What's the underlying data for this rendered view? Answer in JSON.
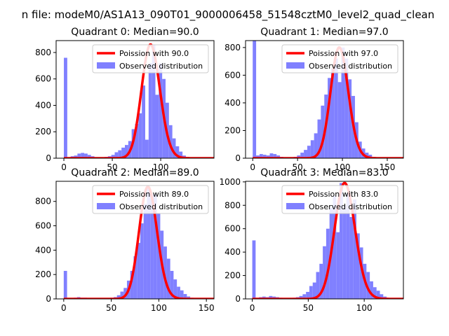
{
  "figure": {
    "suptitle": "n file: modeM0/AS1A13_090T01_9000006458_51548cztM0_level2_quad_clean"
  },
  "colors": {
    "poisson": "#ff0000",
    "observed": "#8080ff",
    "axis": "#000000",
    "background": "#ffffff"
  },
  "chart_data": [
    {
      "type": "bar",
      "title": "Quadrant 0: Median=90.0",
      "xlim": [
        -8,
        155
      ],
      "ylim": [
        0,
        890
      ],
      "xticks": [
        0,
        50,
        100
      ],
      "yticks": [
        0,
        200,
        400,
        600,
        800
      ],
      "legend": {
        "placement": "top-right",
        "entries": [
          "Poission with 90.0",
          "Observed distribution"
        ]
      },
      "observed": {
        "name": "Observed distribution",
        "bin_width": 3.5,
        "x": [
          0,
          3.5,
          7,
          10.5,
          14,
          17.5,
          21,
          24.5,
          28,
          31.5,
          35,
          38.5,
          42,
          45.5,
          49,
          52.5,
          56,
          59.5,
          63,
          66.5,
          70,
          73.5,
          77,
          80.5,
          84,
          87.5,
          91,
          94.5,
          98,
          101.5,
          105,
          108.5,
          112,
          115.5,
          119,
          122.5,
          126,
          129.5,
          133,
          136.5,
          140,
          143.5
        ],
        "values": [
          760,
          5,
          15,
          20,
          35,
          40,
          35,
          25,
          15,
          5,
          5,
          5,
          10,
          15,
          25,
          45,
          60,
          80,
          100,
          130,
          220,
          260,
          340,
          550,
          140,
          720,
          860,
          480,
          720,
          600,
          420,
          250,
          150,
          90,
          50,
          20,
          10,
          5,
          3,
          2,
          1,
          1
        ]
      },
      "poisson": {
        "name": "Poission with 90.0",
        "mean": 90.0
      }
    },
    {
      "type": "bar",
      "title": "Quadrant 1: Median=97.0",
      "xlim": [
        -8,
        168
      ],
      "ylim": [
        0,
        850
      ],
      "xticks": [
        0,
        50,
        100,
        150
      ],
      "yticks": [
        0,
        200,
        400,
        600,
        800
      ],
      "legend": {
        "placement": "top-right",
        "entries": [
          "Poission with 97.0",
          "Observed distribution"
        ]
      },
      "observed": {
        "name": "Observed distribution",
        "bin_width": 3.8,
        "x": [
          0,
          3.8,
          7.6,
          11.4,
          15.2,
          19,
          22.8,
          26.6,
          30.4,
          34.2,
          38,
          41.8,
          45.6,
          49.4,
          53.2,
          57,
          60.8,
          64.6,
          68.4,
          72.2,
          76,
          79.8,
          83.6,
          87.4,
          91.2,
          95,
          98.8,
          102.6,
          106.4,
          110.2,
          114,
          117.8,
          121.6,
          125.4,
          129.2,
          133,
          136.8,
          140.6,
          144.4,
          148.2,
          152,
          155.8,
          159.6
        ],
        "values": [
          850,
          20,
          30,
          25,
          20,
          35,
          30,
          20,
          10,
          5,
          5,
          5,
          10,
          20,
          40,
          60,
          90,
          130,
          180,
          280,
          380,
          460,
          580,
          650,
          720,
          550,
          800,
          720,
          570,
          450,
          260,
          120,
          70,
          40,
          25,
          10,
          5,
          3,
          2,
          1,
          1,
          1,
          1
        ]
      },
      "poisson": {
        "name": "Poission with 97.0",
        "mean": 97.0
      }
    },
    {
      "type": "bar",
      "title": "Quadrant 2: Median=89.0",
      "xlim": [
        -8,
        158
      ],
      "ylim": [
        0,
        965
      ],
      "xticks": [
        0,
        50,
        100,
        150
      ],
      "yticks": [
        0,
        200,
        400,
        600,
        800
      ],
      "legend": {
        "placement": "top-right",
        "entries": [
          "Poission with 89.0",
          "Observed distribution"
        ]
      },
      "observed": {
        "name": "Observed distribution",
        "bin_width": 3.5,
        "x": [
          0,
          3.5,
          7,
          10.5,
          14,
          17.5,
          21,
          24.5,
          28,
          31.5,
          35,
          38.5,
          42,
          45.5,
          49,
          52.5,
          56,
          59.5,
          63,
          66.5,
          70,
          73.5,
          77,
          80.5,
          84,
          87.5,
          91,
          94.5,
          98,
          101.5,
          105,
          108.5,
          112,
          115.5,
          119,
          122.5,
          126,
          129.5,
          133,
          136.5,
          140,
          143.5,
          147
        ],
        "values": [
          230,
          5,
          5,
          10,
          15,
          10,
          10,
          5,
          5,
          5,
          5,
          5,
          5,
          5,
          10,
          15,
          30,
          60,
          90,
          150,
          230,
          350,
          460,
          620,
          780,
          920,
          860,
          860,
          700,
          560,
          430,
          330,
          230,
          160,
          100,
          70,
          40,
          20,
          10,
          5,
          3,
          2,
          1
        ]
      },
      "poisson": {
        "name": "Poission with 89.0",
        "mean": 89.0
      }
    },
    {
      "type": "bar",
      "title": "Quadrant 3: Median=83.0",
      "xlim": [
        -6,
        135
      ],
      "ylim": [
        0,
        1005
      ],
      "xticks": [
        0,
        50,
        100
      ],
      "yticks": [
        0,
        200,
        400,
        600,
        800,
        1000
      ],
      "legend": {
        "placement": "top-right",
        "entries": [
          "Poission with 83.0",
          "Observed distribution"
        ]
      },
      "observed": {
        "name": "Observed distribution",
        "bin_width": 3.0,
        "x": [
          0,
          3,
          6,
          9,
          12,
          15,
          18,
          21,
          24,
          27,
          30,
          33,
          36,
          39,
          42,
          45,
          48,
          51,
          54,
          57,
          60,
          63,
          66,
          69,
          72,
          75,
          78,
          81,
          84,
          87,
          90,
          93,
          96,
          99,
          102,
          105,
          108,
          111,
          114,
          117,
          120,
          123,
          126
        ],
        "values": [
          500,
          10,
          15,
          20,
          15,
          25,
          20,
          15,
          10,
          5,
          5,
          5,
          10,
          15,
          25,
          40,
          60,
          110,
          140,
          230,
          300,
          450,
          600,
          780,
          880,
          570,
          990,
          800,
          900,
          700,
          850,
          560,
          440,
          300,
          230,
          150,
          100,
          70,
          40,
          20,
          10,
          5,
          2
        ]
      },
      "poisson": {
        "name": "Poission with 83.0",
        "mean": 83.0
      }
    }
  ]
}
